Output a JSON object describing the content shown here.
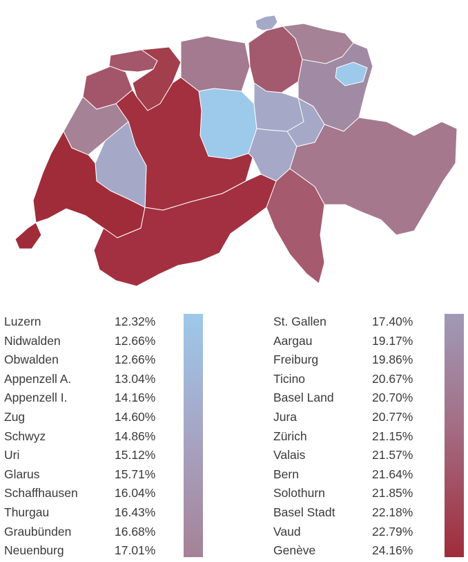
{
  "colors": {
    "low": "#9dc9ea",
    "mid_low": "#a6a8c8",
    "mid": "#a58296",
    "mid_high": "#a36f86",
    "high": "#a02c3a"
  },
  "legend_left": [
    {
      "name": "Luzern",
      "value": "12.32%"
    },
    {
      "name": "Nidwalden",
      "value": "12.66%"
    },
    {
      "name": "Obwalden",
      "value": "12.66%"
    },
    {
      "name": "Appenzell A.",
      "value": "13.04%"
    },
    {
      "name": "Appenzell I.",
      "value": "14.16%"
    },
    {
      "name": "Zug",
      "value": "14.60%"
    },
    {
      "name": "Schwyz",
      "value": "14.86%"
    },
    {
      "name": "Uri",
      "value": "15.12%"
    },
    {
      "name": "Glarus",
      "value": "15.71%"
    },
    {
      "name": "Schaffhausen",
      "value": "16.04%"
    },
    {
      "name": "Thurgau",
      "value": "16.43%"
    },
    {
      "name": "Graubünden",
      "value": "16.68%"
    },
    {
      "name": "Neuenburg",
      "value": "17.01%"
    }
  ],
  "legend_right": [
    {
      "name": "St. Gallen",
      "value": "17.40%"
    },
    {
      "name": "Aargau",
      "value": "19.17%"
    },
    {
      "name": "Freiburg",
      "value": "19.86%"
    },
    {
      "name": "Ticino",
      "value": "20.67%"
    },
    {
      "name": "Basel Land",
      "value": "20.70%"
    },
    {
      "name": "Jura",
      "value": "20.77%"
    },
    {
      "name": "Zürich",
      "value": "21.15%"
    },
    {
      "name": "Valais",
      "value": "21.57%"
    },
    {
      "name": "Bern",
      "value": "21.64%"
    },
    {
      "name": "Solothurn",
      "value": "21.85%"
    },
    {
      "name": "Basel Stadt",
      "value": "22.18%"
    },
    {
      "name": "Vaud",
      "value": "22.79%"
    },
    {
      "name": "Genève",
      "value": "24.16%"
    }
  ]
}
